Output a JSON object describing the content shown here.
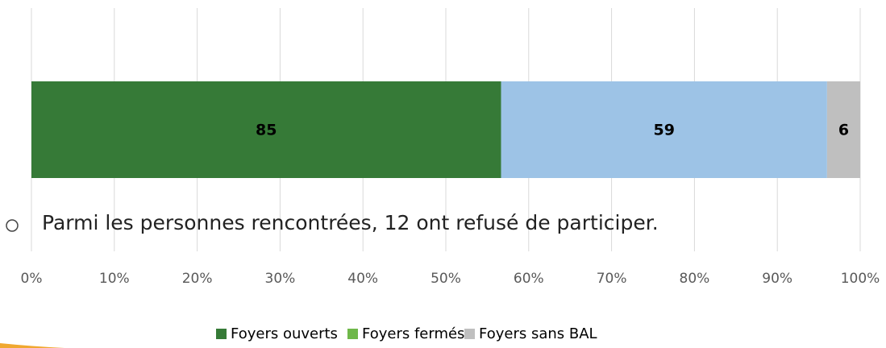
{
  "chart_data": {
    "type": "bar",
    "orientation": "horizontal",
    "stack": "percent",
    "series": [
      {
        "name": "Foyers ouverts",
        "color": "#367a37",
        "legend_color": "#367a37",
        "values": [
          85
        ]
      },
      {
        "name": "Foyers fermés",
        "color": "#9dc3e6",
        "legend_color": "#6fb84a",
        "values": [
          59
        ]
      },
      {
        "name": "Foyers sans BAL",
        "color": "#bfbfbf",
        "legend_color": "#bfbfbf",
        "values": [
          6
        ]
      }
    ],
    "xlim": [
      0,
      100
    ],
    "xticks": [
      {
        "value": 0,
        "label": "0%"
      },
      {
        "value": 10,
        "label": "10%"
      },
      {
        "value": 20,
        "label": "20%"
      },
      {
        "value": 30,
        "label": "30%"
      },
      {
        "value": 40,
        "label": "40%"
      },
      {
        "value": 50,
        "label": "50%"
      },
      {
        "value": 60,
        "label": "60%"
      },
      {
        "value": 70,
        "label": "70%"
      },
      {
        "value": 80,
        "label": "80%"
      },
      {
        "value": 90,
        "label": "90%"
      },
      {
        "value": 100,
        "label": "100%"
      }
    ],
    "grid": true,
    "legend": "bottom",
    "annotation": "Parmi les personnes rencontrées, 12 ont refusé de participer."
  }
}
